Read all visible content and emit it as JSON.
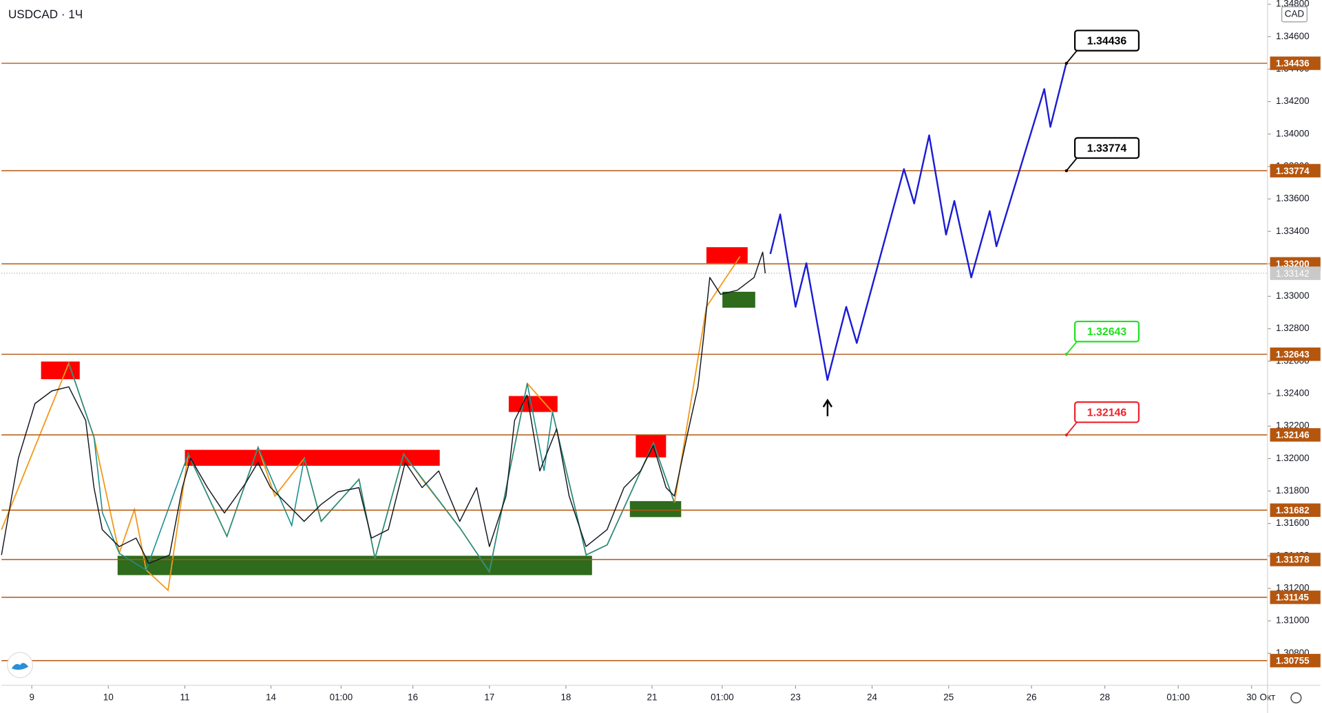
{
  "chart_data": {
    "type": "line",
    "title": "USDCAD · 1Ч",
    "currency": "CAD",
    "xlim": [
      0,
      397
    ],
    "xticks": [
      {
        "value": 9.5,
        "label": "9"
      },
      {
        "value": 33.5,
        "label": "10"
      },
      {
        "value": 57.5,
        "label": "11"
      },
      {
        "value": 84.5,
        "label": "14"
      },
      {
        "value": 106.5,
        "label": "01:00"
      },
      {
        "value": 129,
        "label": "16"
      },
      {
        "value": 153,
        "label": "17"
      },
      {
        "value": 177,
        "label": "18"
      },
      {
        "value": 204,
        "label": "21"
      },
      {
        "value": 226,
        "label": "01:00"
      },
      {
        "value": 249,
        "label": "23"
      },
      {
        "value": 273,
        "label": "24"
      },
      {
        "value": 297,
        "label": "25"
      },
      {
        "value": 323,
        "label": "26"
      },
      {
        "value": 346,
        "label": "28"
      },
      {
        "value": 369,
        "label": "01:00"
      },
      {
        "value": 392,
        "label": "30"
      },
      {
        "value": 397,
        "label": "Окт"
      }
    ],
    "ylim": [
      1.308,
      1.348
    ],
    "yticks": [
      {
        "value": 1.348,
        "label": "1.34800"
      },
      {
        "value": 1.346,
        "label": "1.34600"
      },
      {
        "value": 1.344,
        "label": "1.34400"
      },
      {
        "value": 1.342,
        "label": "1.34200"
      },
      {
        "value": 1.34,
        "label": "1.34000"
      },
      {
        "value": 1.338,
        "label": "1.33800"
      },
      {
        "value": 1.336,
        "label": "1.33600"
      },
      {
        "value": 1.334,
        "label": "1.33400"
      },
      {
        "value": 1.332,
        "label": "1.33200"
      },
      {
        "value": 1.33,
        "label": "1.33000"
      },
      {
        "value": 1.328,
        "label": "1.32800"
      },
      {
        "value": 1.326,
        "label": "1.32600"
      },
      {
        "value": 1.324,
        "label": "1.32400"
      },
      {
        "value": 1.322,
        "label": "1.32200"
      },
      {
        "value": 1.32,
        "label": "1.32000"
      },
      {
        "value": 1.318,
        "label": "1.31800"
      },
      {
        "value": 1.316,
        "label": "1.31600"
      },
      {
        "value": 1.314,
        "label": "1.31400"
      },
      {
        "value": 1.312,
        "label": "1.31200"
      },
      {
        "value": 1.31,
        "label": "1.31000"
      },
      {
        "value": 1.308,
        "label": "1.30800"
      }
    ],
    "series": [
      {
        "color": "#131722",
        "x": [
          0,
          5.3,
          10.5,
          15.8,
          21.1,
          26.4,
          29,
          31.6,
          36.9,
          42.2,
          46.2,
          52.7,
          56.7,
          59.3,
          64.6,
          69.9,
          76.5,
          80.4,
          84.4,
          89.7,
          94.9,
          100.2,
          105.5,
          112.1,
          116,
          121.3,
          126.6,
          131.9,
          137.1,
          143.7,
          149,
          153,
          158.2,
          160.9,
          164.8,
          168.8,
          174.1,
          178,
          183.3,
          189.9,
          195.2,
          200.4,
          204.4,
          208.4,
          211,
          214.9,
          218.4,
          220.2,
          222.1,
          225.5,
          230.8,
          236,
          238.7,
          239.5
        ],
        "values": [
          1.31406,
          1.32002,
          1.32339,
          1.32417,
          1.32442,
          1.32235,
          1.31821,
          1.31562,
          1.31458,
          1.3151,
          1.31354,
          1.31406,
          1.31821,
          1.32002,
          1.31821,
          1.31665,
          1.31847,
          1.31976,
          1.31821,
          1.31717,
          1.31613,
          1.31717,
          1.31795,
          1.31821,
          1.3151,
          1.31562,
          1.31976,
          1.31821,
          1.31924,
          1.31613,
          1.31821,
          1.31458,
          1.31769,
          1.32235,
          1.32391,
          1.31924,
          1.32183,
          1.31769,
          1.31458,
          1.31562,
          1.31821,
          1.31924,
          1.3208,
          1.31821,
          1.31769,
          1.32132,
          1.32442,
          1.32753,
          1.33116,
          1.33012,
          1.33038,
          1.33116,
          1.33272,
          1.33142
        ]
      }
    ],
    "forecast": {
      "color": "#1c1cd4",
      "x": [
        241.1,
        244.2,
        249,
        252.4,
        259,
        264.9,
        268.2,
        283,
        286.2,
        290.9,
        296.2,
        298.8,
        304.1,
        309.9,
        312,
        327,
        328.9,
        333.9
      ],
      "values": [
        1.33261,
        1.33505,
        1.32935,
        1.33204,
        1.32484,
        1.32935,
        1.32712,
        1.33784,
        1.33572,
        1.33992,
        1.3338,
        1.33588,
        1.33116,
        1.33525,
        1.33308,
        1.34277,
        1.34044,
        1.34436
      ]
    },
    "levels": {
      "color": "#b5560f",
      "values": [
        1.34436,
        1.33774,
        1.332,
        1.32643,
        1.32146,
        1.31682,
        1.31378,
        1.31145,
        1.30755
      ],
      "value_labels": [
        "1.34436",
        "1.33774",
        "1.33200",
        "1.32643",
        "1.32146",
        "1.31682",
        "1.31378",
        "1.31145",
        "1.30755"
      ]
    },
    "last_price": 1.33142,
    "annotations": {
      "values": [
        1.34436,
        1.33774,
        1.32643,
        1.32146
      ],
      "colors": [
        "#000000",
        "#000000",
        "#1fe01f",
        "#f0202a"
      ]
    }
  }
}
